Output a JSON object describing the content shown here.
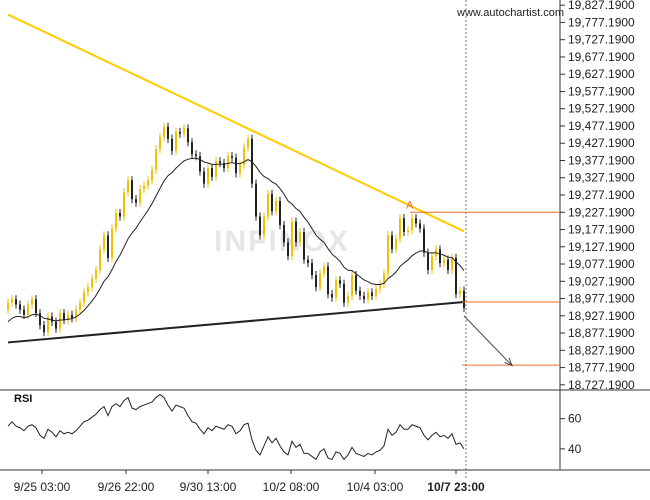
{
  "watermark": {
    "site": "www.autochartist.com",
    "brand": "INFINOX"
  },
  "colors": {
    "resistance": "#ffcc00",
    "support": "#222222",
    "bull_candle": "#f2c200",
    "bear_candle": "#222222",
    "moving_average": "#222222",
    "projection": "#444444",
    "level_marker": "#f06a2a",
    "rsi_line": "#222222",
    "dashed_marker": "#777777"
  },
  "chart_data": [
    {
      "type": "candlestick",
      "title": "",
      "xlabel": "",
      "ylabel": "",
      "x_tick_labels": [
        "9/25 03:00",
        "9/26 22:00",
        "9/30 13:00",
        "10/2 08:00",
        "10/4 03:00",
        "10/7 23:00"
      ],
      "y_ticks": [
        "19,827.1900",
        "19,777.1900",
        "19,727.1900",
        "19,677.1900",
        "19,627.1900",
        "19,577.1900",
        "19,527.1900",
        "19,477.1900",
        "19,427.1900",
        "19,377.1900",
        "19,327.1900",
        "19,277.1900",
        "19,227.1900",
        "19,177.1900",
        "19,127.1900",
        "19,077.1900",
        "19,027.1900",
        "18,977.1900",
        "18,927.1900",
        "18,877.1900",
        "18,827.1900",
        "18,777.1900",
        "18,727.1900"
      ],
      "ylim": [
        18712.19,
        19842.19
      ],
      "grid": false,
      "close_values": [
        18965,
        18975,
        18960,
        18945,
        18930,
        18960,
        18975,
        18935,
        18900,
        18880,
        18925,
        18910,
        18890,
        18935,
        18915,
        18930,
        18920,
        18945,
        18965,
        18995,
        19010,
        19035,
        19060,
        19120,
        19160,
        19095,
        19180,
        19225,
        19215,
        19285,
        19320,
        19265,
        19255,
        19295,
        19305,
        19320,
        19350,
        19410,
        19445,
        19475,
        19440,
        19405,
        19460,
        19455,
        19470,
        19430,
        19395,
        19390,
        19345,
        19310,
        19355,
        19330,
        19375,
        19370,
        19355,
        19390,
        19385,
        19340,
        19365,
        19415,
        19440,
        19310,
        19215,
        19160,
        19215,
        19280,
        19230,
        19260,
        19190,
        19140,
        19100,
        19200,
        19140,
        19170,
        19090,
        19080,
        19045,
        19010,
        19050,
        19070,
        18990,
        18980,
        19030,
        19020,
        18965,
        18985,
        19045,
        19000,
        18985,
        18975,
        18995,
        18985,
        19005,
        19020,
        19050,
        19160,
        19120,
        19150,
        19210,
        19170,
        19175,
        19210,
        19195,
        19180,
        19110,
        19060,
        19100,
        19120,
        19080,
        19090,
        19060,
        19095,
        18990,
        19000,
        18950
      ],
      "moving_average": [
        18910,
        18920,
        18925,
        18925,
        18922,
        18924,
        18930,
        18932,
        18928,
        18920,
        18918,
        18915,
        18912,
        18915,
        18915,
        18917,
        18919,
        18924,
        18932,
        18943,
        18956,
        18970,
        18986,
        19006,
        19027,
        19040,
        19061,
        19084,
        19103,
        19126,
        19150,
        19167,
        19181,
        19199,
        19216,
        19233,
        19252,
        19274,
        19296,
        19318,
        19333,
        19342,
        19355,
        19366,
        19376,
        19381,
        19383,
        19384,
        19380,
        19373,
        19370,
        19366,
        19366,
        19367,
        19366,
        19369,
        19371,
        19368,
        19368,
        19373,
        19380,
        19373,
        19360,
        19343,
        19331,
        19325,
        19315,
        19309,
        19296,
        19280,
        19260,
        19251,
        19238,
        19230,
        19213,
        19198,
        19180,
        19161,
        19149,
        19140,
        19122,
        19106,
        19096,
        19085,
        19068,
        19059,
        19058,
        19049,
        19040,
        19031,
        19026,
        19020,
        19018,
        19018,
        19021,
        19035,
        19043,
        19054,
        19070,
        19080,
        19089,
        19101,
        19109,
        19115,
        19115,
        19110,
        19109,
        19110,
        19106,
        19103,
        19097,
        19096,
        19083,
        19073,
        19058
      ],
      "pattern": {
        "resistance": [
          {
            "x": 0,
            "y": 19800
          },
          {
            "x": 114,
            "y": 19172
          }
        ],
        "support": [
          {
            "x": 0,
            "y": 18850
          },
          {
            "x": 114,
            "y": 18967
          }
        ],
        "forecast": [
          {
            "x": 114,
            "y": 18927
          },
          {
            "x": 126,
            "y": 18783
          }
        ],
        "levels": [
          19227.19,
          18967.19,
          18784.19
        ],
        "point_label": "A"
      }
    },
    {
      "type": "line",
      "title": "RSI",
      "y_ticks": [
        "60",
        "40"
      ],
      "ylim": [
        26,
        79
      ],
      "values": [
        55,
        58,
        55,
        54,
        52,
        55,
        56,
        54,
        49,
        47,
        53,
        51,
        48,
        52,
        50,
        51,
        50,
        52,
        55,
        58,
        59,
        61,
        63,
        66,
        68,
        62,
        68,
        70,
        68,
        72,
        74,
        67,
        66,
        68,
        69,
        70,
        71,
        74,
        76,
        74,
        69,
        65,
        69,
        68,
        67,
        62,
        58,
        57,
        53,
        50,
        54,
        52,
        55,
        54,
        53,
        56,
        55,
        50,
        52,
        56,
        57,
        46,
        39,
        36,
        42,
        48,
        44,
        47,
        42,
        38,
        36,
        45,
        41,
        43,
        37,
        37,
        35,
        33,
        38,
        40,
        34,
        33,
        38,
        37,
        33,
        36,
        41,
        37,
        36,
        35,
        37,
        36,
        38,
        39,
        42,
        53,
        49,
        51,
        56,
        53,
        53,
        56,
        55,
        54,
        49,
        46,
        49,
        51,
        48,
        49,
        47,
        50,
        43,
        44,
        40
      ]
    }
  ]
}
